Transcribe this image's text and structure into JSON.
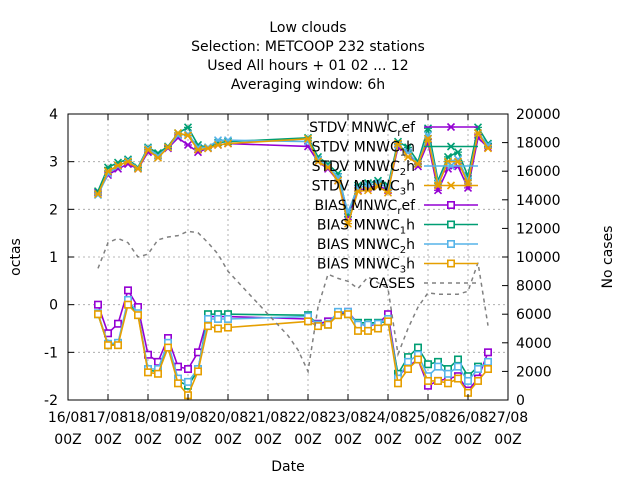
{
  "chart_data": {
    "type": "line",
    "title_lines": [
      "Low clouds",
      "Selection: METCOOP    232 stations",
      "Used  All hours + 01 02 ... 12",
      "Averaging window:  6h"
    ],
    "xlabel": "Date",
    "ylabel": "octas",
    "y2label": "No cases",
    "ylim": [
      -2,
      4
    ],
    "y2lim": [
      0,
      20000
    ],
    "yticks": [
      "-2",
      "-1",
      "0",
      "1",
      "2",
      "3",
      "4"
    ],
    "y2ticks": [
      "0",
      "2000",
      "4000",
      "6000",
      "8000",
      "10000",
      "12000",
      "14000",
      "16000",
      "18000",
      "20000"
    ],
    "xticks": [
      {
        "date": "16/08",
        "time": "00Z",
        "day": 16
      },
      {
        "date": "17/08",
        "time": "00Z",
        "day": 17
      },
      {
        "date": "18/08",
        "time": "00Z",
        "day": 18
      },
      {
        "date": "19/08",
        "time": "00Z",
        "day": 19
      },
      {
        "date": "20/08",
        "time": "00Z",
        "day": 20
      },
      {
        "date": "21/08",
        "time": "00Z",
        "day": 21
      },
      {
        "date": "22/08",
        "time": "00Z",
        "day": 22
      },
      {
        "date": "23/08",
        "time": "00Z",
        "day": 23
      },
      {
        "date": "24/08",
        "time": "00Z",
        "day": 24
      },
      {
        "date": "25/08",
        "time": "00Z",
        "day": 25
      },
      {
        "date": "26/08",
        "time": "00Z",
        "day": 26
      },
      {
        "date": "27/08",
        "time": "00Z",
        "day": 27
      }
    ],
    "xlim": [
      16,
      27
    ],
    "grid": true,
    "legend_position": "top-right",
    "series": [
      {
        "legend": [
          "STDV MNWC",
          "r",
          "ef"
        ],
        "color": "#9400d3",
        "marker": "x",
        "axis": "y",
        "x": [
          16.75,
          17.0,
          17.25,
          17.5,
          17.75,
          18.0,
          18.25,
          18.5,
          18.75,
          19.0,
          19.25,
          19.5,
          19.75,
          20.0,
          22.0,
          22.25,
          22.5,
          22.75,
          23.0,
          23.25,
          23.5,
          23.75,
          24.0,
          24.25,
          24.5,
          24.75,
          25.0,
          25.25,
          25.5,
          25.75,
          26.0,
          26.25,
          26.5
        ],
        "values": [
          2.35,
          2.72,
          2.85,
          2.95,
          2.85,
          3.2,
          3.12,
          3.28,
          3.5,
          3.35,
          3.2,
          3.28,
          3.35,
          3.38,
          3.32,
          3.0,
          2.85,
          2.6,
          1.85,
          2.4,
          2.45,
          2.5,
          2.4,
          3.3,
          3.2,
          2.9,
          3.4,
          2.4,
          2.85,
          2.9,
          2.45,
          3.5,
          3.3
        ]
      },
      {
        "legend": [
          "STDV MNWC",
          "1",
          "h"
        ],
        "color": "#009e73",
        "marker": "x",
        "axis": "y",
        "x": [
          16.75,
          17.0,
          17.25,
          17.5,
          17.75,
          18.0,
          18.25,
          18.5,
          18.75,
          19.0,
          19.25,
          19.5,
          19.75,
          20.0,
          22.0,
          22.25,
          22.5,
          22.75,
          23.0,
          23.25,
          23.5,
          23.75,
          24.0,
          24.25,
          24.5,
          24.75,
          25.0,
          25.25,
          25.5,
          25.75,
          26.0,
          26.25,
          26.5
        ],
        "values": [
          2.38,
          2.88,
          2.98,
          3.05,
          2.88,
          3.3,
          3.18,
          3.32,
          3.6,
          3.72,
          3.35,
          3.3,
          3.4,
          3.42,
          3.5,
          3.1,
          2.95,
          2.75,
          1.9,
          2.5,
          2.55,
          2.6,
          2.5,
          3.42,
          3.3,
          3.0,
          3.7,
          2.6,
          3.1,
          3.2,
          2.7,
          3.72,
          3.38
        ]
      },
      {
        "legend": [
          "STDV MNWC",
          "2",
          "h"
        ],
        "color": "#56b4e9",
        "marker": "x",
        "axis": "y",
        "x": [
          16.75,
          17.0,
          17.25,
          17.5,
          17.75,
          18.0,
          18.25,
          18.5,
          18.75,
          19.0,
          19.25,
          19.5,
          19.75,
          20.0,
          22.0,
          22.25,
          22.5,
          22.75,
          23.0,
          23.25,
          23.5,
          23.75,
          24.0,
          24.25,
          24.5,
          24.75,
          25.0,
          25.25,
          25.5,
          25.75,
          26.0,
          26.25,
          26.5
        ],
        "values": [
          2.3,
          2.75,
          2.9,
          3.02,
          2.86,
          3.28,
          3.12,
          3.3,
          3.55,
          3.58,
          3.3,
          3.3,
          3.45,
          3.45,
          3.42,
          3.05,
          2.9,
          2.68,
          1.95,
          2.45,
          2.5,
          2.55,
          2.45,
          3.35,
          3.2,
          2.95,
          3.55,
          2.55,
          3.0,
          3.05,
          2.6,
          3.6,
          3.35
        ]
      },
      {
        "legend": [
          "STDV MNWC",
          "3",
          "h"
        ],
        "color": "#e69f00",
        "marker": "x",
        "axis": "y",
        "x": [
          16.75,
          17.0,
          17.25,
          17.5,
          17.75,
          18.0,
          18.25,
          18.5,
          18.75,
          19.0,
          19.25,
          19.5,
          19.75,
          20.0,
          22.0,
          22.25,
          22.5,
          22.75,
          23.0,
          23.25,
          23.5,
          23.75,
          24.0,
          24.25,
          24.5,
          24.75,
          25.0,
          25.25,
          25.5,
          25.75,
          26.0,
          26.25,
          26.5
        ],
        "values": [
          2.32,
          2.8,
          2.92,
          3.0,
          2.85,
          3.25,
          3.08,
          3.3,
          3.6,
          3.55,
          3.25,
          3.28,
          3.35,
          3.38,
          3.48,
          3.0,
          2.88,
          2.6,
          1.7,
          2.38,
          2.4,
          2.48,
          2.35,
          3.38,
          3.1,
          2.95,
          3.48,
          2.5,
          3.0,
          3.0,
          2.55,
          3.6,
          3.28
        ]
      },
      {
        "legend": [
          "BIAS MNWC",
          "r",
          "ef"
        ],
        "color": "#9400d3",
        "marker": "square",
        "axis": "y",
        "x": [
          16.75,
          17.0,
          17.25,
          17.5,
          17.75,
          18.0,
          18.25,
          18.5,
          18.75,
          19.0,
          19.25,
          19.5,
          19.75,
          20.0,
          22.0,
          22.25,
          22.5,
          22.75,
          23.0,
          23.25,
          23.5,
          23.75,
          24.0,
          24.25,
          24.5,
          24.75,
          25.0,
          25.25,
          25.5,
          25.75,
          26.0,
          26.25,
          26.5
        ],
        "values": [
          0.0,
          -0.6,
          -0.4,
          0.3,
          -0.05,
          -1.05,
          -1.2,
          -0.7,
          -1.3,
          -1.35,
          -1.0,
          -0.25,
          -0.25,
          -0.25,
          -0.3,
          -0.4,
          -0.35,
          -0.2,
          -0.15,
          -0.4,
          -0.45,
          -0.4,
          -0.2,
          -1.5,
          -1.3,
          -1.15,
          -1.7,
          -1.6,
          -1.55,
          -1.5,
          -1.8,
          -1.55,
          -1.0
        ]
      },
      {
        "legend": [
          "BIAS MNWC",
          "1",
          "h"
        ],
        "color": "#009e73",
        "marker": "square",
        "axis": "y",
        "x": [
          16.75,
          17.0,
          17.25,
          17.5,
          17.75,
          18.0,
          18.25,
          18.5,
          18.75,
          19.0,
          19.25,
          19.5,
          19.75,
          20.0,
          22.0,
          22.25,
          22.5,
          22.75,
          23.0,
          23.25,
          23.5,
          23.75,
          24.0,
          24.25,
          24.5,
          24.75,
          25.0,
          25.25,
          25.5,
          25.75,
          26.0,
          26.25,
          26.5
        ],
        "values": [
          -0.2,
          -0.85,
          -0.82,
          0.05,
          -0.2,
          -1.38,
          -1.4,
          -0.88,
          -1.6,
          -1.7,
          -1.38,
          -0.2,
          -0.2,
          -0.2,
          -0.22,
          -0.42,
          -0.42,
          -0.2,
          -0.2,
          -0.38,
          -0.38,
          -0.38,
          -0.35,
          -1.45,
          -1.1,
          -0.9,
          -1.25,
          -1.2,
          -1.35,
          -1.15,
          -1.5,
          -1.3,
          -1.25
        ]
      },
      {
        "legend": [
          "BIAS MNWC",
          "2",
          "h"
        ],
        "color": "#56b4e9",
        "marker": "square",
        "axis": "y",
        "x": [
          16.75,
          17.0,
          17.25,
          17.5,
          17.75,
          18.0,
          18.25,
          18.5,
          18.75,
          19.0,
          19.25,
          19.5,
          19.75,
          20.0,
          22.0,
          22.25,
          22.5,
          22.75,
          23.0,
          23.25,
          23.5,
          23.75,
          24.0,
          24.25,
          24.5,
          24.75,
          25.0,
          25.25,
          25.5,
          25.75,
          26.0,
          26.25,
          26.5
        ],
        "values": [
          -0.18,
          -0.82,
          -0.8,
          0.1,
          -0.18,
          -1.35,
          -1.35,
          -0.8,
          -1.55,
          -1.62,
          -1.35,
          -0.3,
          -0.3,
          -0.3,
          -0.25,
          -0.42,
          -0.4,
          -0.15,
          -0.15,
          -0.42,
          -0.42,
          -0.4,
          -0.3,
          -1.55,
          -1.2,
          -1.05,
          -1.5,
          -1.3,
          -1.45,
          -1.3,
          -1.6,
          -1.35,
          -1.2
        ]
      },
      {
        "legend": [
          "BIAS MNWC",
          "3",
          "h"
        ],
        "color": "#e69f00",
        "marker": "square",
        "axis": "y",
        "x": [
          16.75,
          17.0,
          17.25,
          17.5,
          17.75,
          18.0,
          18.25,
          18.5,
          18.75,
          19.0,
          19.25,
          19.5,
          19.75,
          20.0,
          22.0,
          22.25,
          22.5,
          22.75,
          23.0,
          23.25,
          23.5,
          23.75,
          24.0,
          24.25,
          24.5,
          24.75,
          25.0,
          25.25,
          25.5,
          25.75,
          26.0,
          26.25,
          26.5
        ],
        "values": [
          -0.2,
          -0.85,
          -0.85,
          0.0,
          -0.22,
          -1.42,
          -1.45,
          -0.9,
          -1.65,
          -1.9,
          -1.4,
          -0.45,
          -0.5,
          -0.48,
          -0.35,
          -0.45,
          -0.42,
          -0.22,
          -0.2,
          -0.55,
          -0.55,
          -0.5,
          -0.35,
          -1.65,
          -1.35,
          -1.15,
          -1.6,
          -1.6,
          -1.65,
          -1.55,
          -1.85,
          -1.6,
          -1.35
        ]
      },
      {
        "legend": [
          "CASES",
          "",
          ""
        ],
        "color": "#808080",
        "marker": "none",
        "dashed": true,
        "axis": "y2",
        "x": [
          16.75,
          17.0,
          17.25,
          17.5,
          17.75,
          18.0,
          18.25,
          18.5,
          18.75,
          19.0,
          19.25,
          19.5,
          19.75,
          20.0,
          20.5,
          21.0,
          21.5,
          21.75,
          22.0,
          22.25,
          22.5,
          22.75,
          23.0,
          23.25,
          23.5,
          23.75,
          24.0,
          24.25,
          24.5,
          24.75,
          25.0,
          25.25,
          25.5,
          25.75,
          26.0,
          26.25,
          26.5
        ],
        "values": [
          9200,
          11000,
          11300,
          11000,
          10000,
          10200,
          11200,
          11400,
          11500,
          11800,
          11700,
          11000,
          10200,
          9000,
          7500,
          6000,
          4500,
          3500,
          2000,
          6500,
          8800,
          8500,
          8300,
          7800,
          8600,
          8200,
          7800,
          3200,
          5000,
          6500,
          7500,
          7400,
          7400,
          7400,
          7600,
          9600,
          5200
        ]
      }
    ]
  }
}
